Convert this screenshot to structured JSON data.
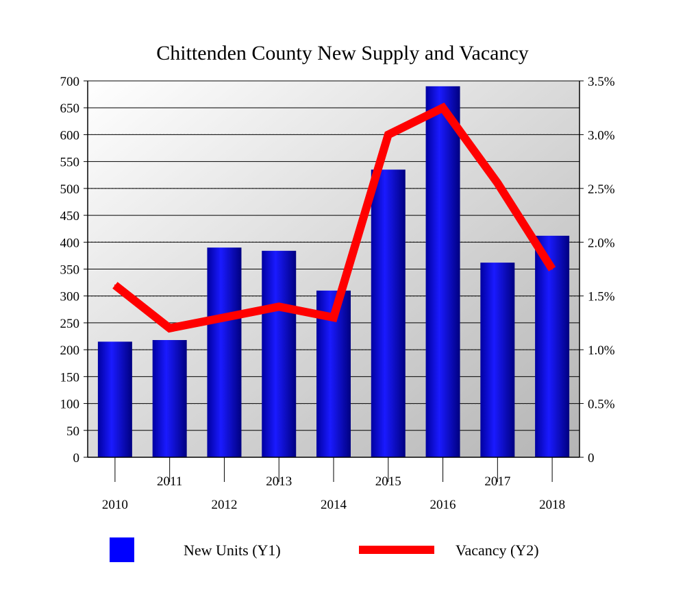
{
  "chart_data": {
    "type": "bar+line",
    "title": "Chittenden County New Supply and Vacancy",
    "categories": [
      "2010",
      "2011",
      "2012",
      "2013",
      "2014",
      "2015",
      "2016",
      "2017",
      "2018"
    ],
    "series": [
      {
        "name": "New Units (Y1)",
        "type": "bar",
        "axis": "y1",
        "color": "#0000ff",
        "values": [
          215,
          218,
          390,
          384,
          310,
          535,
          690,
          362,
          412
        ]
      },
      {
        "name": "Vacancy (Y2)",
        "type": "line",
        "axis": "y2",
        "color": "#ff0000",
        "values": [
          1.6,
          1.2,
          1.3,
          1.4,
          1.3,
          3.0,
          3.25,
          2.55,
          1.75
        ]
      }
    ],
    "y1": {
      "min": 0,
      "max": 700,
      "ticks": [
        "0",
        "50",
        "100",
        "150",
        "200",
        "250",
        "300",
        "350",
        "400",
        "450",
        "500",
        "550",
        "600",
        "650",
        "700"
      ]
    },
    "y2": {
      "min": 0,
      "max": 3.5,
      "ticks": [
        "0",
        "0.5%",
        "1.0%",
        "1.5%",
        "2.0%",
        "2.5%",
        "3.0%",
        "3.5%"
      ]
    },
    "grid": true,
    "legend_position": "bottom"
  }
}
